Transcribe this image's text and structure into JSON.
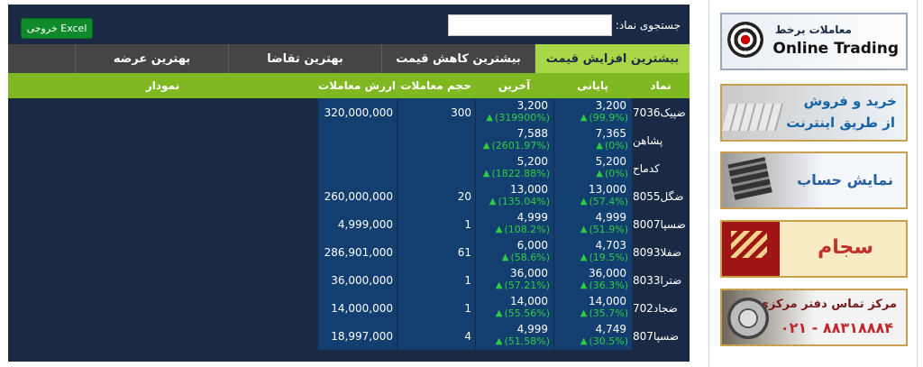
{
  "search": {
    "label": "جستجوی نماد:",
    "value": ""
  },
  "excel_button": "خروجی Excel",
  "tabs": [
    {
      "label": "بیشترین افزایش قیمت",
      "active": true
    },
    {
      "label": "بیشترین کاهش قیمت",
      "active": false
    },
    {
      "label": "بهترین تقاضا",
      "active": false
    },
    {
      "label": "بهترین عرضه",
      "active": false
    }
  ],
  "columns": {
    "symbol": "نماد",
    "close": "پایانی",
    "last": "آخرین",
    "volume": "حجم معاملات",
    "value": "ارزش معاملات",
    "chart": "نمودار"
  },
  "rows": [
    {
      "symbol": "ضپیک7036",
      "close": "3,200",
      "close_chg": "(99.9%)",
      "last": "3,200",
      "last_chg": "(319900%)",
      "volume": "300",
      "value": "320,000,000"
    },
    {
      "symbol": "پشاهن",
      "close": "7,365",
      "close_chg": "(0%)",
      "last": "7,588",
      "last_chg": "(2601.97%)",
      "volume": "",
      "value": ""
    },
    {
      "symbol": "کدماح",
      "close": "5,200",
      "close_chg": "(0%)",
      "last": "5,200",
      "last_chg": "(1822.88%)",
      "volume": "",
      "value": ""
    },
    {
      "symbol": "ضگل8055",
      "close": "13,000",
      "close_chg": "(57.4%)",
      "last": "13,000",
      "last_chg": "(135.04%)",
      "volume": "20",
      "value": "260,000,000"
    },
    {
      "symbol": "ضسپا8007",
      "close": "4,999",
      "close_chg": "(51.9%)",
      "last": "4,999",
      "last_chg": "(108.2%)",
      "volume": "1",
      "value": "4,999,000"
    },
    {
      "symbol": "ضفلا8093",
      "close": "4,703",
      "close_chg": "(19.5%)",
      "last": "6,000",
      "last_chg": "(58.6%)",
      "volume": "61",
      "value": "286,901,000"
    },
    {
      "symbol": "ضترا8033",
      "close": "36,000",
      "close_chg": "(36.3%)",
      "last": "36,000",
      "last_chg": "(57.21%)",
      "volume": "1",
      "value": "36,000,000"
    },
    {
      "symbol": "ضجاد702",
      "close": "14,000",
      "close_chg": "(35.7%)",
      "last": "14,000",
      "last_chg": "(55.56%)",
      "volume": "1",
      "value": "14,000,000"
    },
    {
      "symbol": "ضسپا807",
      "close": "4,749",
      "close_chg": "(30.5%)",
      "last": "4,999",
      "last_chg": "(51.58%)",
      "volume": "4",
      "value": "18,997,000"
    }
  ],
  "banners": [
    {
      "line1": "معاملات برخط",
      "line2": "Online Trading"
    },
    {
      "line1": "خرید و فروش",
      "line2": "از طریق اینترنت"
    },
    {
      "line1": "نمایش حساب"
    },
    {
      "line1": "سجام"
    },
    {
      "line1": "مرکز تماس دفتر مرکزی",
      "line2": "۰۲۱ - ۸۸۳۱۸۸۸۴"
    }
  ],
  "colors": {
    "panel": "#1b2a44",
    "active_tab": "#a8d84a",
    "header": "#7fb820",
    "cell": "#133f70",
    "positive": "#2ecc40"
  }
}
